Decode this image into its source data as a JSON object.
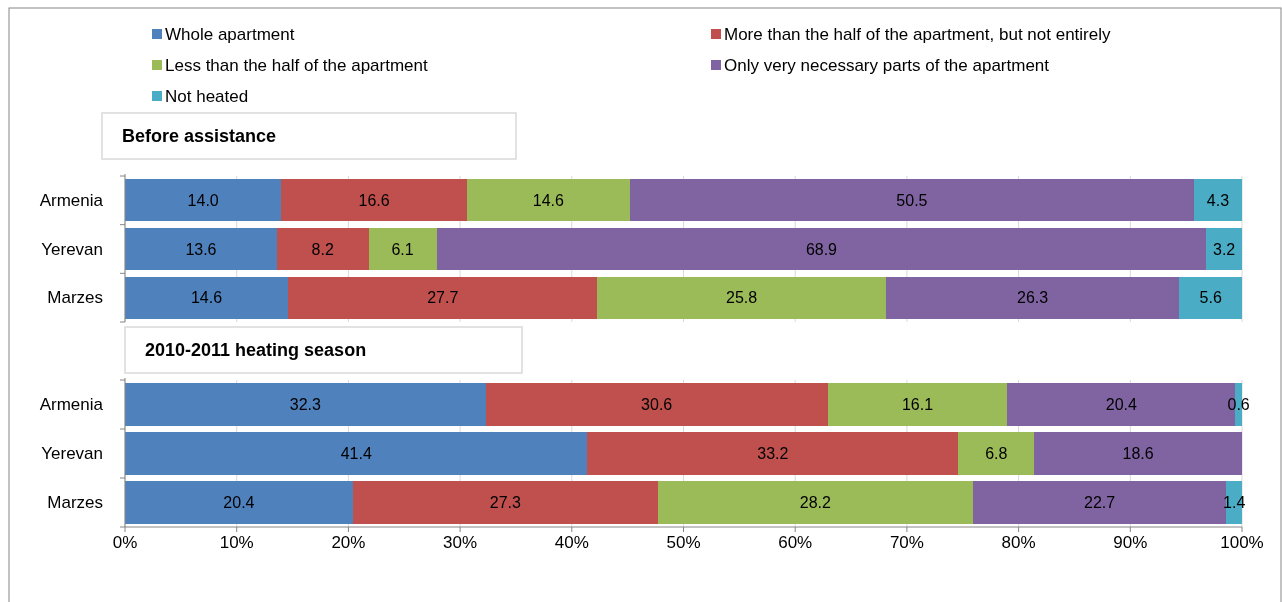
{
  "chart_data": [
    {
      "type": "bar",
      "orientation": "horizontal",
      "stacked": true,
      "title": "Before assistance",
      "categories": [
        "Armenia",
        "Yerevan",
        "Marzes"
      ],
      "series": [
        {
          "name": "Whole apartment",
          "color": "#4f81bd",
          "values": [
            14.0,
            13.6,
            14.6
          ],
          "value_labels": [
            "14.0",
            "13.6",
            "14.6"
          ]
        },
        {
          "name": "More than the half of the apartment, but not entirely",
          "color": "#c0504d",
          "values": [
            16.6,
            8.2,
            27.7
          ],
          "value_labels": [
            "16.6",
            "8.2",
            "27.7"
          ]
        },
        {
          "name": "Less than the half of the apartment",
          "color": "#9bbb59",
          "values": [
            14.6,
            6.1,
            25.8
          ],
          "value_labels": [
            "14.6",
            "6.1",
            "25.8"
          ]
        },
        {
          "name": "Only very necessary parts of the apartment",
          "color": "#8064a2",
          "values": [
            50.5,
            68.9,
            26.3
          ],
          "value_labels": [
            "50.5",
            "68.9",
            "26.3"
          ]
        },
        {
          "name": "Not heated",
          "color": "#4bacc6",
          "values": [
            4.3,
            3.2,
            5.6
          ],
          "value_labels": [
            "4.3",
            "3.2",
            "5.6"
          ]
        }
      ],
      "xlim": [
        0,
        100
      ],
      "xticks": [
        {
          "value": 0,
          "label": null
        },
        {
          "value": 10,
          "label": null
        },
        {
          "value": 20,
          "label": null
        },
        {
          "value": 30,
          "label": null
        },
        {
          "value": 40,
          "label": null
        },
        {
          "value": 50,
          "label": null
        },
        {
          "value": 60,
          "label": null
        },
        {
          "value": 70,
          "label": null
        },
        {
          "value": 80,
          "label": null
        },
        {
          "value": 90,
          "label": null
        },
        {
          "value": 100,
          "label": null
        }
      ],
      "grid": "x",
      "legend": "top",
      "tick_labels": "y"
    },
    {
      "type": "bar",
      "orientation": "horizontal",
      "stacked": true,
      "title": "2010-2011 heating season",
      "categories": [
        "Armenia",
        "Yerevan",
        "Marzes"
      ],
      "series": [
        {
          "color": "#4f81bd",
          "values": [
            32.3,
            41.4,
            20.4
          ],
          "value_labels": [
            "32.3",
            "41.4",
            "20.4"
          ]
        },
        {
          "color": "#c0504d",
          "values": [
            30.6,
            33.2,
            27.3
          ],
          "value_labels": [
            "30.6",
            "33.2",
            "27.3"
          ]
        },
        {
          "color": "#9bbb59",
          "values": [
            16.1,
            6.8,
            28.2
          ],
          "value_labels": [
            "16.1",
            "6.8",
            "28.2"
          ]
        },
        {
          "color": "#8064a2",
          "values": [
            20.4,
            18.6,
            22.7
          ],
          "value_labels": [
            "20.4",
            "18.6",
            "22.7"
          ]
        },
        {
          "color": "#4bacc6",
          "values": [
            0.6,
            null,
            1.4
          ],
          "value_labels": [
            "0.6",
            null,
            "1.4"
          ]
        }
      ],
      "xlim": [
        0,
        100
      ],
      "xticks": [
        {
          "value": 0,
          "label": "0%"
        },
        {
          "value": 10,
          "label": "10%"
        },
        {
          "value": 20,
          "label": "20%"
        },
        {
          "value": 30,
          "label": "30%"
        },
        {
          "value": 40,
          "label": "40%"
        },
        {
          "value": 50,
          "label": "50%"
        },
        {
          "value": 60,
          "label": "60%"
        },
        {
          "value": 70,
          "label": "70%"
        },
        {
          "value": 80,
          "label": "80%"
        },
        {
          "value": 90,
          "label": "90%"
        },
        {
          "value": 100,
          "label": "100%"
        }
      ],
      "grid": "x"
    }
  ]
}
